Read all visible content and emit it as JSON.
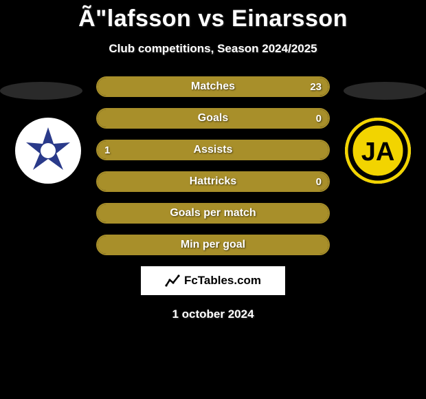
{
  "title": "Ã\"lafsson vs Einarsson",
  "subtitle": "Club competitions, Season 2024/2025",
  "date": "1 october 2024",
  "footer_label": "FcTables.com",
  "colors": {
    "bar_fill": "#a88f2a",
    "bar_border": "#a88f2a",
    "background": "#000000",
    "text": "#ffffff"
  },
  "clubs": {
    "left": {
      "name": "Stjarnan",
      "badge_bg": "#ffffff",
      "badge_primary": "#2a3a8a"
    },
    "right": {
      "name": "IA Akranes",
      "badge_bg": "#f2d400",
      "badge_primary": "#000000"
    }
  },
  "rows": [
    {
      "label": "Matches",
      "left": "",
      "right": "23",
      "left_pct": 0,
      "right_pct": 100
    },
    {
      "label": "Goals",
      "left": "",
      "right": "0",
      "left_pct": 0,
      "right_pct": 100
    },
    {
      "label": "Assists",
      "left": "1",
      "right": "",
      "left_pct": 100,
      "right_pct": 0
    },
    {
      "label": "Hattricks",
      "left": "",
      "right": "0",
      "left_pct": 0,
      "right_pct": 100
    },
    {
      "label": "Goals per match",
      "left": "",
      "right": "",
      "left_pct": 50,
      "right_pct": 50
    },
    {
      "label": "Min per goal",
      "left": "",
      "right": "",
      "left_pct": 50,
      "right_pct": 50
    }
  ]
}
